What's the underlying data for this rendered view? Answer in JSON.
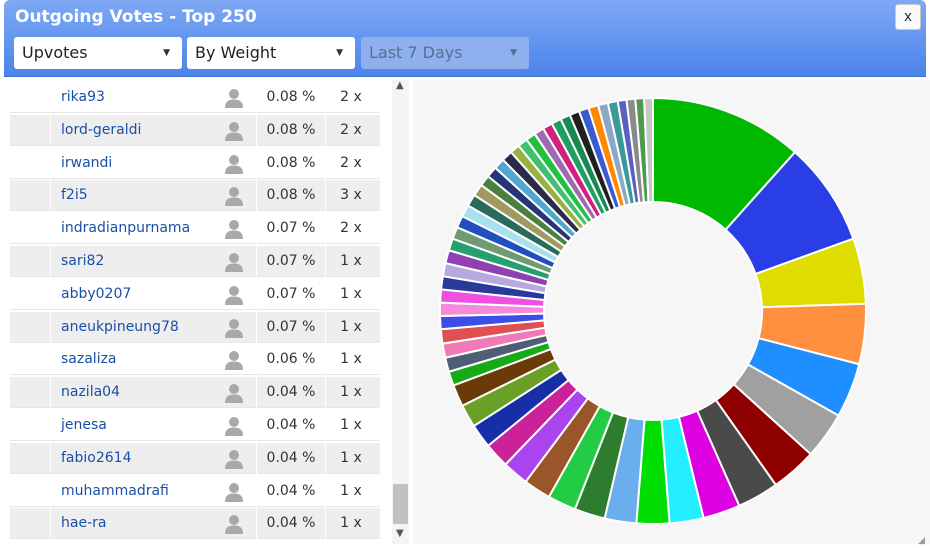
{
  "window": {
    "title": "Outgoing Votes - Top 250",
    "close_label": "x"
  },
  "filters": {
    "vote_type": "Upvotes",
    "sort": "By Weight",
    "period": "Last 7 Days"
  },
  "rows": [
    {
      "name": "rika93",
      "pct": "0.08 %",
      "count": "2 x"
    },
    {
      "name": "lord-geraldi",
      "pct": "0.08 %",
      "count": "2 x"
    },
    {
      "name": "irwandi",
      "pct": "0.08 %",
      "count": "2 x"
    },
    {
      "name": "f2i5",
      "pct": "0.08 %",
      "count": "3 x"
    },
    {
      "name": "indradianpurnama",
      "pct": "0.07 %",
      "count": "2 x"
    },
    {
      "name": "sari82",
      "pct": "0.07 %",
      "count": "1 x"
    },
    {
      "name": "abby0207",
      "pct": "0.07 %",
      "count": "1 x"
    },
    {
      "name": "aneukpineung78",
      "pct": "0.07 %",
      "count": "1 x"
    },
    {
      "name": "sazaliza",
      "pct": "0.06 %",
      "count": "1 x"
    },
    {
      "name": "nazila04",
      "pct": "0.04 %",
      "count": "1 x"
    },
    {
      "name": "jenesa",
      "pct": "0.04 %",
      "count": "1 x"
    },
    {
      "name": "fabio2614",
      "pct": "0.04 %",
      "count": "1 x"
    },
    {
      "name": "muhammadrafi",
      "pct": "0.04 %",
      "count": "1 x"
    },
    {
      "name": "hae-ra",
      "pct": "0.04 %",
      "count": "1 x"
    }
  ],
  "colors": {
    "title_bar": "#5a8eee",
    "link": "#1a4fa8",
    "row_alt": "#eeeeee"
  },
  "chart_data": {
    "type": "pie",
    "donut": true,
    "values": [
      14.0,
      9.5,
      6.0,
      5.5,
      5.0,
      4.3,
      4.2,
      3.8,
      3.4,
      3.1,
      3.0,
      2.9,
      2.8,
      2.6,
      2.5,
      2.4,
      2.3,
      2.2,
      2.1,
      2.0,
      1.3,
      1.3,
      1.3,
      1.3,
      1.2,
      1.2,
      1.2,
      1.2,
      1.2,
      1.2,
      1.1,
      1.1,
      1.1,
      1.1,
      1.1,
      1.1,
      1.0,
      1.0,
      1.0,
      1.0,
      0.9,
      0.9,
      0.9,
      0.9,
      0.9,
      0.9,
      0.9,
      0.9,
      0.9,
      0.9,
      0.9,
      0.9,
      0.8,
      0.8,
      0.8,
      0.8
    ],
    "colors": [
      "#00b800",
      "#2a3ee6",
      "#dedc00",
      "#ff9040",
      "#1f8fff",
      "#a0a0a0",
      "#8f0000",
      "#4a4a4a",
      "#dd00e0",
      "#22eeff",
      "#00dd00",
      "#6aaeee",
      "#2e7d2e",
      "#22cc44",
      "#9a5528",
      "#aa44ee",
      "#cc2299",
      "#162ea8",
      "#6aa028",
      "#6a3a08",
      "#16aa16",
      "#4e5e76",
      "#f07ab8",
      "#e05050",
      "#3c4ee8",
      "#f48ad8",
      "#f050e0",
      "#2a3a9a",
      "#b8a8e0",
      "#9040b0",
      "#26a070",
      "#709a70",
      "#2050c0",
      "#a8e0f0",
      "#2a6a5a",
      "#a09a60",
      "#4a8040",
      "#26357a",
      "#50a8d0",
      "#2a2a4a",
      "#9ab040",
      "#40c070",
      "#22c040",
      "#a06ab0",
      "#d02080",
      "#20a060",
      "#168a50",
      "#202020",
      "#3a5ad0",
      "#ff8800",
      "#8aa8c8",
      "#3a9a9a",
      "#5a60c0",
      "#8a8a8a",
      "#509a50",
      "#c8c8c8"
    ]
  }
}
